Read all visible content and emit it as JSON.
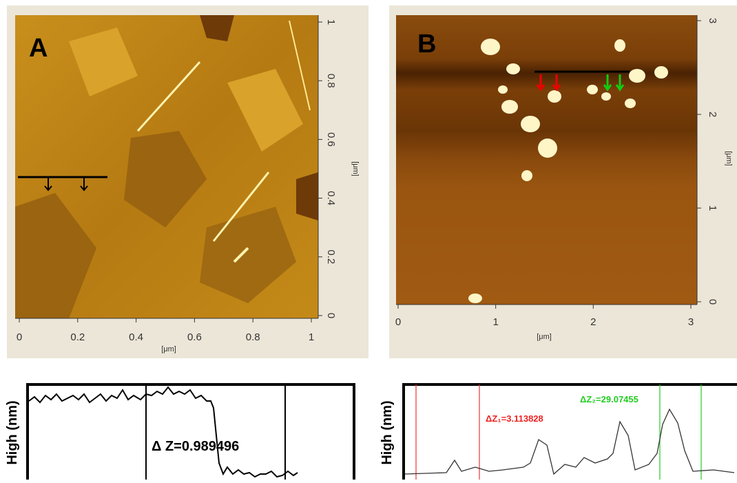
{
  "panel_a": {
    "label": "A",
    "x_ticks": [
      0,
      0.2,
      0.4,
      0.6,
      0.8,
      1
    ],
    "y_ticks": [
      0,
      0.2,
      0.4,
      0.6,
      0.8,
      1
    ],
    "x_unit": "[μm]",
    "y_unit": "[μm]"
  },
  "panel_b": {
    "label": "B",
    "x_ticks": [
      0,
      1,
      2,
      3
    ],
    "y_ticks": [
      0,
      1,
      2,
      3
    ],
    "x_unit": "[μm]",
    "y_unit": "[μm]"
  },
  "profile_a": {
    "y_label": "High (nm)",
    "annotation": "Δ Z=0.989496"
  },
  "profile_b": {
    "y_label": "High (nm)",
    "annotation_1": "ΔZ₁=3.113828",
    "annotation_2": "ΔZ₂=29.07455"
  }
}
